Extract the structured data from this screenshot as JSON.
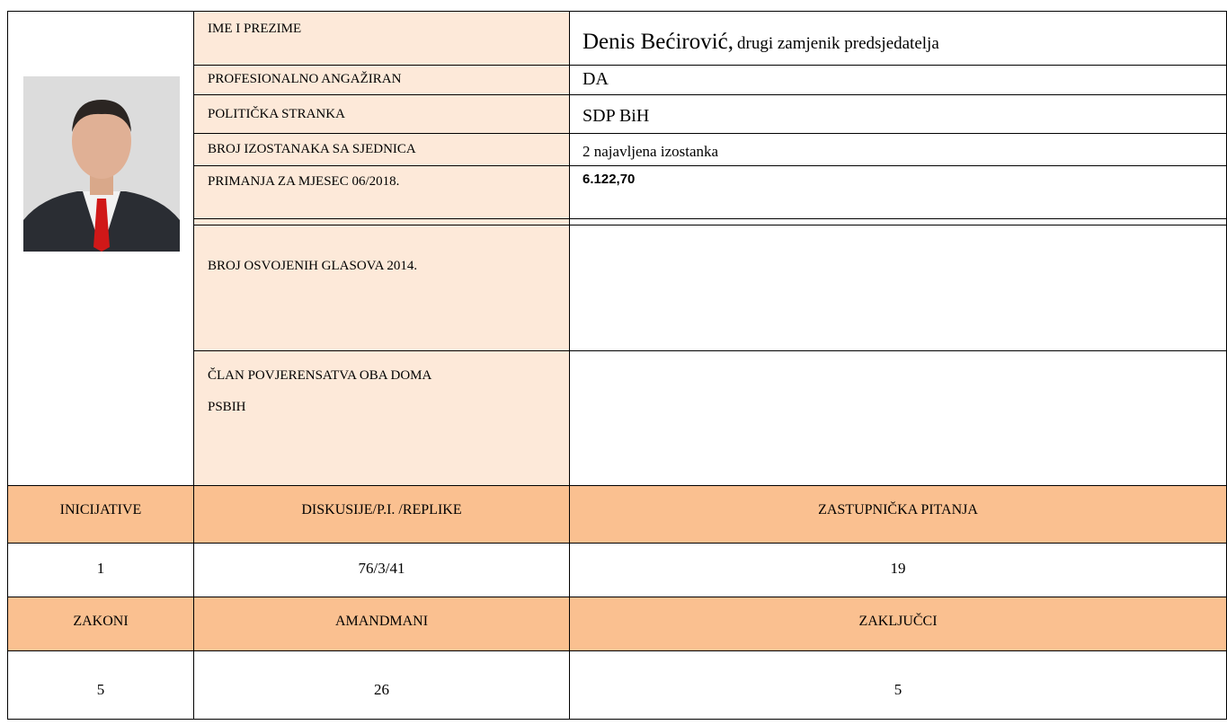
{
  "info_rows": [
    {
      "label": "IME I PREZIME",
      "value": "Denis Bećirović,",
      "note": "drugi zamjenik predsjedatelja"
    },
    {
      "label": "PROFESIONALNO ANGAŽIRAN",
      "value": "DA"
    },
    {
      "label": "POLITIČKA STRANKA",
      "value": "SDP BiH"
    },
    {
      "label": "BROJ IZOSTANAKA SA SJEDNICA",
      "value": "2 najavljena izostanka"
    },
    {
      "label": "PRIMANJA ZA MJESEC 06/2018.",
      "value": "6.122,70"
    },
    {
      "label": "BROJ OSVOJENIH GLASOVA 2014."
    },
    {
      "label": "ČLAN POVJERENSATVA OBA DOMA PSBIH"
    }
  ],
  "stats": {
    "rows": [
      [
        "INICIJATIVE",
        "DISKUSIJE/P.I. /REPLIKE",
        "ZASTUPNIČKA PITANJA"
      ],
      [
        1,
        "76/3/41",
        19
      ],
      [
        "ZAKONI",
        "AMANDMANI",
        "ZAKLJUČCI"
      ],
      [
        5,
        26,
        5
      ]
    ]
  }
}
